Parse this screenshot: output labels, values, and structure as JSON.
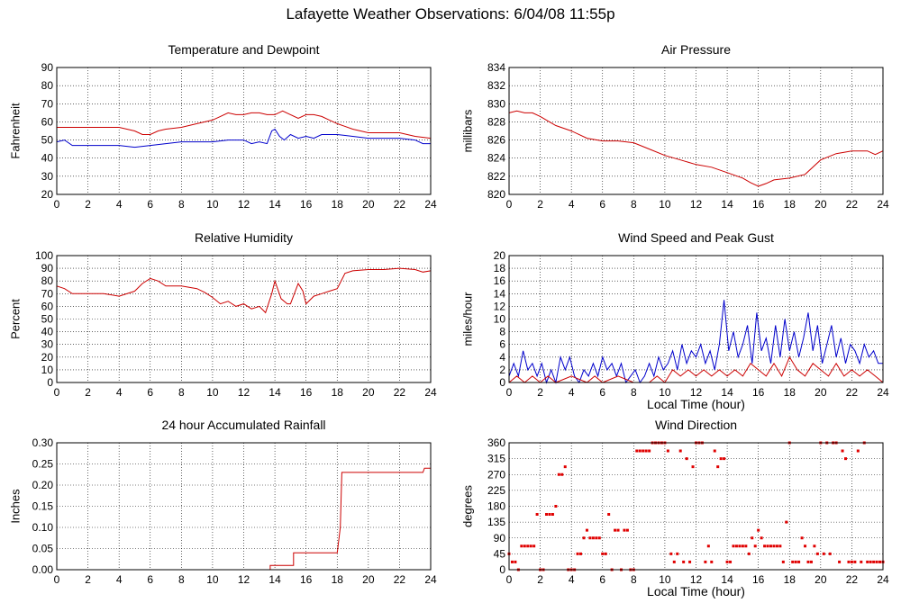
{
  "page_title": "Lafayette Weather Observations: 6/04/08 11:55p",
  "chart_data": [
    {
      "id": "temp",
      "type": "line",
      "title": "Temperature and Dewpoint",
      "xlabel": "",
      "ylabel": "Fahrenheit",
      "xlim": [
        0,
        24
      ],
      "ylim": [
        20,
        90
      ],
      "x_ticks": [
        0,
        2,
        4,
        6,
        8,
        10,
        12,
        14,
        16,
        18,
        20,
        22,
        24
      ],
      "y_ticks": [
        20,
        30,
        40,
        50,
        60,
        70,
        80,
        90
      ],
      "grid": true,
      "series": [
        {
          "color": "#cc0000",
          "x": [
            0,
            1,
            2,
            3,
            4,
            5,
            5.5,
            6,
            6.5,
            7,
            8,
            9,
            9.5,
            10,
            10.5,
            11,
            11.5,
            12,
            12.5,
            13,
            13.5,
            14,
            14.5,
            15,
            15.5,
            16,
            16.5,
            17,
            17.5,
            18,
            19,
            20,
            21,
            22,
            23,
            24
          ],
          "y": [
            57,
            57,
            57,
            57,
            57,
            55,
            53,
            53,
            55,
            56,
            57,
            59,
            60,
            61,
            63,
            65,
            64,
            64,
            65,
            65,
            64,
            64,
            66,
            64,
            62,
            64,
            64,
            63,
            61,
            59,
            56,
            54,
            54,
            54,
            52,
            51
          ]
        },
        {
          "color": "#0000cc",
          "x": [
            0,
            0.5,
            1,
            2,
            3,
            4,
            5,
            6,
            7,
            8,
            9,
            10,
            11,
            12,
            12.5,
            13,
            13.5,
            13.8,
            14,
            14.3,
            14.6,
            15,
            15.5,
            16,
            16.5,
            17,
            18,
            19,
            20,
            21,
            22,
            23,
            23.5,
            24
          ],
          "y": [
            49,
            50,
            47,
            47,
            47,
            47,
            46,
            47,
            48,
            49,
            49,
            49,
            50,
            50,
            48,
            49,
            48,
            55,
            56,
            52,
            50,
            53,
            51,
            52,
            51,
            53,
            53,
            52,
            51,
            51,
            51,
            50,
            48,
            48
          ]
        }
      ]
    },
    {
      "id": "pressure",
      "type": "line",
      "title": "Air Pressure",
      "xlabel": "",
      "ylabel": "millibars",
      "xlim": [
        0,
        24
      ],
      "ylim": [
        820,
        834
      ],
      "x_ticks": [
        0,
        2,
        4,
        6,
        8,
        10,
        12,
        14,
        16,
        18,
        20,
        22,
        24
      ],
      "y_ticks": [
        820,
        822,
        824,
        826,
        828,
        830,
        832,
        834
      ],
      "grid": true,
      "series": [
        {
          "color": "#cc0000",
          "x": [
            0,
            0.5,
            1,
            1.5,
            2,
            3,
            4,
            5,
            6,
            7,
            8,
            9,
            10,
            11,
            12,
            13,
            14,
            15,
            15.5,
            16,
            16.5,
            17,
            18,
            19,
            20,
            21,
            22,
            23,
            23.5,
            24
          ],
          "y": [
            829,
            829.2,
            829,
            829,
            828.6,
            827.6,
            827,
            826.2,
            825.9,
            825.9,
            825.7,
            825,
            824.3,
            823.8,
            823.3,
            823,
            822.4,
            821.8,
            821.3,
            820.9,
            821.2,
            821.6,
            821.8,
            822.2,
            823.8,
            824.5,
            824.8,
            824.8,
            824.4,
            824.8
          ]
        }
      ]
    },
    {
      "id": "humidity",
      "type": "line",
      "title": "Relative Humidity",
      "xlabel": "",
      "ylabel": "Percent",
      "xlim": [
        0,
        24
      ],
      "ylim": [
        0,
        100
      ],
      "x_ticks": [
        0,
        2,
        4,
        6,
        8,
        10,
        12,
        14,
        16,
        18,
        20,
        22,
        24
      ],
      "y_ticks": [
        0,
        10,
        20,
        30,
        40,
        50,
        60,
        70,
        80,
        90,
        100
      ],
      "grid": true,
      "series": [
        {
          "color": "#cc0000",
          "x": [
            0,
            0.5,
            1,
            2,
            3,
            4,
            5,
            5.5,
            6,
            6.5,
            7,
            8,
            9,
            9.5,
            10,
            10.5,
            11,
            11.5,
            12,
            12.5,
            13,
            13.4,
            13.8,
            14,
            14.4,
            14.8,
            15,
            15.5,
            15.8,
            16,
            16.5,
            17,
            17.5,
            18,
            18.5,
            19,
            20,
            21,
            22,
            23,
            23.5,
            24
          ],
          "y": [
            76,
            74,
            70,
            70,
            70,
            68,
            72,
            78,
            82,
            80,
            76,
            76,
            74,
            71,
            67,
            62,
            64,
            60,
            62,
            58,
            60,
            55,
            70,
            80,
            66,
            62,
            62,
            78,
            72,
            62,
            68,
            70,
            72,
            74,
            86,
            88,
            89,
            89,
            90,
            89,
            87,
            88
          ]
        }
      ]
    },
    {
      "id": "wind",
      "type": "line",
      "title": "Wind Speed and Peak Gust",
      "xlabel": "Local Time (hour)",
      "ylabel": "miles/hour",
      "xlim": [
        0,
        24
      ],
      "ylim": [
        0,
        20
      ],
      "x_ticks": [
        0,
        2,
        4,
        6,
        8,
        10,
        12,
        14,
        16,
        18,
        20,
        22,
        24
      ],
      "y_ticks": [
        0,
        2,
        4,
        6,
        8,
        10,
        12,
        14,
        16,
        18,
        20
      ],
      "grid": true,
      "series": [
        {
          "color": "#0000cc",
          "x": [
            0,
            0.3,
            0.6,
            0.9,
            1.2,
            1.5,
            1.8,
            2.1,
            2.4,
            2.7,
            3,
            3.3,
            3.6,
            3.9,
            4.2,
            4.5,
            4.8,
            5.1,
            5.4,
            5.7,
            6,
            6.3,
            6.6,
            6.9,
            7.2,
            7.5,
            7.8,
            8.1,
            8.4,
            8.7,
            9,
            9.3,
            9.6,
            9.9,
            10.2,
            10.5,
            10.8,
            11.1,
            11.4,
            11.7,
            12,
            12.3,
            12.6,
            12.9,
            13.2,
            13.5,
            13.8,
            14.1,
            14.4,
            14.7,
            15,
            15.3,
            15.6,
            15.9,
            16.2,
            16.5,
            16.8,
            17.1,
            17.4,
            17.7,
            18,
            18.3,
            18.6,
            18.9,
            19.2,
            19.5,
            19.8,
            20.1,
            20.4,
            20.7,
            21,
            21.3,
            21.6,
            21.9,
            22.2,
            22.5,
            22.8,
            23.1,
            23.4,
            23.7,
            24
          ],
          "y": [
            1,
            3,
            1,
            5,
            2,
            3,
            1,
            3,
            0,
            2,
            0,
            4,
            2,
            4,
            1,
            0,
            2,
            1,
            3,
            1,
            4,
            2,
            3,
            1,
            3,
            0,
            1,
            2,
            0,
            1,
            3,
            1,
            4,
            2,
            3,
            5,
            2,
            6,
            3,
            5,
            4,
            6,
            3,
            5,
            2,
            6,
            13,
            5,
            8,
            4,
            6,
            9,
            3,
            11,
            5,
            7,
            3,
            9,
            4,
            10,
            5,
            8,
            4,
            7,
            11,
            5,
            9,
            3,
            6,
            9,
            4,
            7,
            3,
            6,
            5,
            3,
            6,
            4,
            5,
            3,
            3
          ]
        },
        {
          "color": "#cc0000",
          "x": [
            0,
            0.5,
            1,
            1.5,
            2,
            2.5,
            3,
            4,
            5,
            5.5,
            6,
            7,
            8,
            9,
            9.5,
            10,
            10.5,
            11,
            11.5,
            12,
            12.5,
            13,
            13.5,
            14,
            14.5,
            15,
            15.5,
            16,
            16.5,
            17,
            17.5,
            18,
            18.5,
            19,
            19.5,
            20,
            20.5,
            21,
            21.5,
            22,
            22.5,
            23,
            23.5,
            24
          ],
          "y": [
            0,
            1,
            0,
            1,
            0,
            1,
            0,
            1,
            0,
            1,
            0,
            1,
            0,
            0,
            1,
            0,
            2,
            1,
            2,
            1,
            2,
            1,
            2,
            1,
            2,
            1,
            3,
            2,
            1,
            3,
            1,
            4,
            2,
            1,
            3,
            2,
            1,
            3,
            1,
            2,
            1,
            2,
            1,
            0
          ]
        }
      ]
    },
    {
      "id": "rain",
      "type": "line",
      "title": "24 hour Accumulated Rainfall",
      "xlabel": "",
      "ylabel": "Inches",
      "xlim": [
        0,
        24
      ],
      "ylim": [
        0,
        0.3
      ],
      "x_ticks": [
        0,
        2,
        4,
        6,
        8,
        10,
        12,
        14,
        16,
        18,
        20,
        22,
        24
      ],
      "y_ticks": [
        "0.00",
        "0.05",
        "0.10",
        "0.15",
        "0.20",
        "0.25",
        "0.30"
      ],
      "grid": true,
      "series": [
        {
          "color": "#cc0000",
          "x": [
            0,
            13.7,
            13.7,
            15.2,
            15.2,
            18.0,
            18.2,
            18.3,
            23.5,
            23.6,
            24
          ],
          "y": [
            0,
            0,
            0.01,
            0.01,
            0.04,
            0.04,
            0.1,
            0.23,
            0.23,
            0.24,
            0.24
          ]
        }
      ]
    },
    {
      "id": "direction",
      "type": "scatter",
      "title": "Wind Direction",
      "xlabel": "Local Time (hour)",
      "ylabel": "degrees",
      "xlim": [
        0,
        24
      ],
      "ylim": [
        0,
        360
      ],
      "x_ticks": [
        0,
        2,
        4,
        6,
        8,
        10,
        12,
        14,
        16,
        18,
        20,
        22,
        24
      ],
      "y_ticks": [
        0,
        45,
        90,
        135,
        180,
        225,
        270,
        315,
        360
      ],
      "grid": true,
      "series": [
        {
          "color": "#e00000",
          "x": [
            0,
            0.2,
            0.4,
            0.6,
            0.8,
            1.0,
            1.2,
            1.4,
            1.6,
            1.8,
            2.0,
            2.2,
            2.4,
            2.6,
            2.8,
            3.0,
            3.2,
            3.4,
            3.6,
            3.8,
            4.0,
            4.2,
            4.4,
            4.6,
            4.8,
            5.0,
            5.2,
            5.4,
            5.6,
            5.8,
            6.0,
            6.2,
            6.4,
            6.6,
            6.8,
            7.0,
            7.2,
            7.4,
            7.6,
            7.8,
            8.0,
            8.2,
            8.4,
            8.6,
            8.8,
            9.0,
            9.2,
            9.4,
            9.6,
            9.8,
            10.0,
            10.2,
            10.4,
            10.6,
            10.8,
            11.0,
            11.2,
            11.4,
            11.6,
            11.8,
            12.0,
            12.2,
            12.4,
            12.6,
            12.8,
            13.0,
            13.2,
            13.4,
            13.6,
            13.8,
            14.0,
            14.2,
            14.4,
            14.6,
            14.8,
            15.0,
            15.2,
            15.4,
            15.6,
            15.8,
            16.0,
            16.2,
            16.4,
            16.6,
            16.8,
            17.0,
            17.2,
            17.4,
            17.6,
            17.8,
            18.0,
            18.2,
            18.4,
            18.6,
            18.8,
            19.0,
            19.2,
            19.4,
            19.6,
            19.8,
            20.0,
            20.2,
            20.4,
            20.6,
            20.8,
            21.0,
            21.2,
            21.4,
            21.6,
            21.8,
            22.0,
            22.2,
            22.4,
            22.6,
            22.8,
            23.0,
            23.2,
            23.4,
            23.6,
            23.8,
            24.0
          ],
          "y": [
            45,
            22,
            22,
            0,
            67,
            67,
            67,
            67,
            67,
            157,
            0,
            0,
            157,
            157,
            157,
            180,
            270,
            270,
            292,
            0,
            0,
            0,
            45,
            45,
            90,
            112,
            90,
            90,
            90,
            90,
            45,
            45,
            157,
            0,
            112,
            112,
            0,
            112,
            112,
            0,
            0,
            337,
            337,
            337,
            337,
            337,
            360,
            360,
            360,
            360,
            360,
            337,
            45,
            22,
            45,
            337,
            22,
            315,
            22,
            292,
            360,
            360,
            360,
            22,
            67,
            22,
            337,
            292,
            315,
            315,
            22,
            22,
            67,
            67,
            67,
            67,
            67,
            45,
            90,
            67,
            112,
            90,
            67,
            67,
            67,
            67,
            67,
            67,
            22,
            135,
            360,
            22,
            22,
            22,
            90,
            67,
            22,
            22,
            67,
            45,
            360,
            45,
            360,
            45,
            360,
            360,
            22,
            337,
            315,
            22,
            22,
            22,
            337,
            22,
            360,
            22,
            22,
            22,
            22,
            22,
            22
          ]
        }
      ]
    }
  ]
}
